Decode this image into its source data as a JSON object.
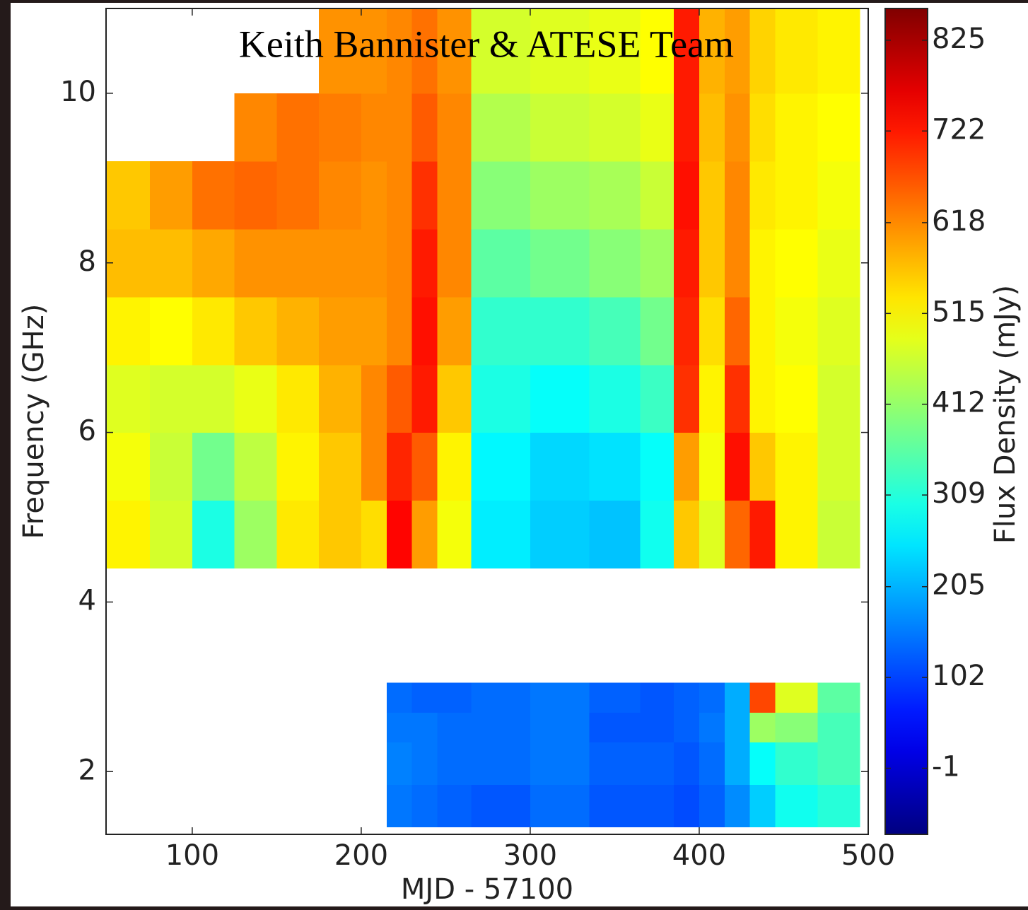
{
  "chart_data": {
    "type": "heatmap",
    "annotation": "Keith Bannister & ATESE Team",
    "xlabel": "MJD - 57100",
    "ylabel": "Frequency (GHz)",
    "colorbar_label": "Flux Density (mJy)",
    "colormap": "jet",
    "xlim": [
      49,
      500
    ],
    "ylim": [
      1.26,
      11
    ],
    "xticks": [
      100,
      200,
      300,
      400,
      500
    ],
    "yticks": [
      2,
      4,
      6,
      8,
      10
    ],
    "clim": [
      -76,
      861
    ],
    "cticks": [
      825,
      722,
      618,
      515,
      412,
      309,
      205,
      102,
      -1
    ],
    "x_edges": [
      49,
      75,
      100,
      125,
      150,
      175,
      200,
      215,
      230,
      245,
      265,
      300,
      335,
      365,
      385,
      400,
      415,
      430,
      445,
      470,
      495
    ],
    "y_edges": [
      1.35,
      1.85,
      2.35,
      2.7,
      3.05,
      4.4,
      5.2,
      6.0,
      6.8,
      7.6,
      8.4,
      9.2,
      10.0,
      11.0
    ],
    "values": [
      [
        null,
        null,
        null,
        null,
        null,
        null,
        null,
        150,
        140,
        130,
        120,
        140,
        120,
        120,
        110,
        130,
        170,
        230,
        290,
        310
      ],
      [
        null,
        null,
        null,
        null,
        null,
        null,
        null,
        160,
        150,
        140,
        140,
        150,
        130,
        130,
        120,
        140,
        200,
        280,
        320,
        340
      ],
      [
        null,
        null,
        null,
        null,
        null,
        null,
        null,
        150,
        150,
        140,
        140,
        150,
        120,
        120,
        130,
        150,
        200,
        420,
        400,
        340
      ],
      [
        null,
        null,
        null,
        null,
        null,
        null,
        null,
        140,
        130,
        130,
        140,
        150,
        130,
        120,
        130,
        140,
        200,
        680,
        480,
        360
      ],
      [
        null,
        null,
        null,
        null,
        null,
        null,
        null,
        null,
        null,
        null,
        null,
        null,
        null,
        null,
        null,
        null,
        null,
        null,
        null,
        null
      ],
      [
        520,
        470,
        300,
        420,
        530,
        560,
        540,
        740,
        600,
        500,
        260,
        230,
        220,
        290,
        560,
        480,
        650,
        720,
        520,
        460
      ],
      [
        500,
        460,
        380,
        450,
        520,
        560,
        620,
        710,
        660,
        520,
        270,
        240,
        250,
        280,
        600,
        500,
        730,
        560,
        520,
        470
      ],
      [
        480,
        470,
        470,
        490,
        530,
        580,
        620,
        660,
        720,
        560,
        300,
        280,
        300,
        330,
        700,
        520,
        700,
        520,
        510,
        470
      ],
      [
        520,
        510,
        530,
        560,
        580,
        600,
        600,
        620,
        730,
        600,
        320,
        320,
        340,
        380,
        710,
        540,
        650,
        520,
        500,
        480
      ],
      [
        570,
        570,
        590,
        610,
        610,
        610,
        610,
        620,
        720,
        620,
        360,
        380,
        400,
        420,
        720,
        560,
        620,
        520,
        510,
        490
      ],
      [
        560,
        600,
        640,
        650,
        640,
        620,
        610,
        620,
        700,
        620,
        400,
        420,
        430,
        460,
        730,
        560,
        620,
        530,
        520,
        500
      ],
      [
        null,
        null,
        null,
        620,
        640,
        630,
        620,
        620,
        660,
        620,
        440,
        460,
        470,
        490,
        720,
        570,
        610,
        540,
        520,
        510
      ],
      [
        null,
        null,
        null,
        null,
        null,
        610,
        610,
        620,
        640,
        610,
        470,
        480,
        490,
        510,
        720,
        580,
        600,
        550,
        530,
        520
      ]
    ]
  }
}
